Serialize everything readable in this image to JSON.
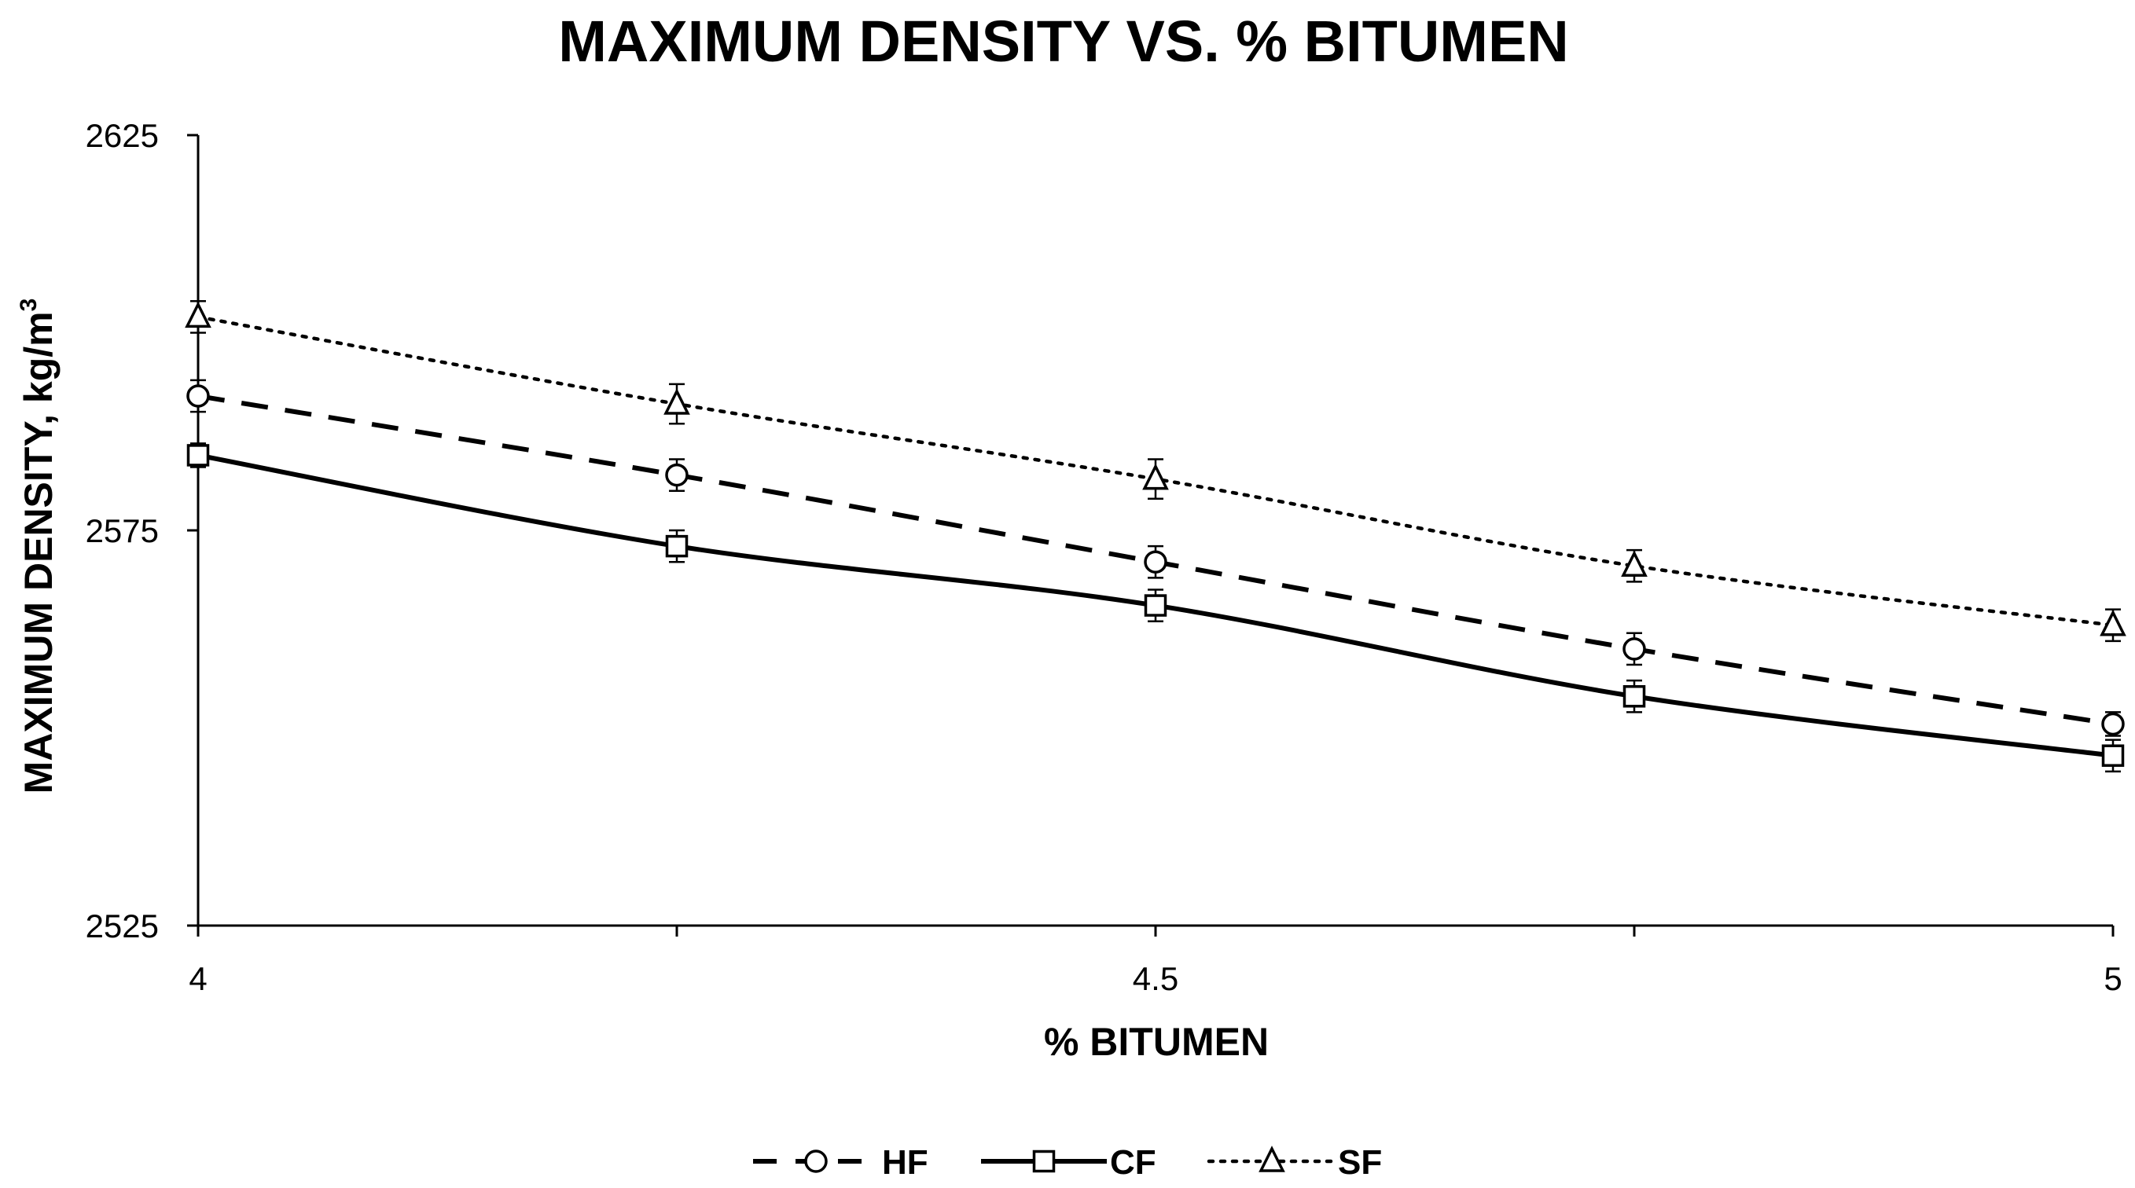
{
  "chart_data": {
    "type": "line",
    "title": "MAXIMUM DENSITY VS. % BITUMEN",
    "xlabel": "% BITUMEN",
    "ylabel": "MAXIMUM DENSITY, kg/m³",
    "ylabel_main": "MAXIMUM DENSITY, kg/m",
    "ylabel_sup": "3",
    "xlim": [
      4,
      5
    ],
    "ylim": [
      2525,
      2625
    ],
    "x_ticks": [
      4,
      4.5,
      5
    ],
    "x_tick_labels": [
      "4",
      "4.5",
      "5"
    ],
    "x_minor_ticks": [
      4.25,
      4.75
    ],
    "y_ticks": [
      2525,
      2575,
      2625
    ],
    "y_tick_labels": [
      "2525",
      "2575",
      "2625"
    ],
    "grid": false,
    "legend_position": "bottom-center",
    "x": [
      4,
      4.25,
      4.5,
      4.75,
      5
    ],
    "series": [
      {
        "name": "HF",
        "values": [
          2592,
          2582,
          2571,
          2560,
          2550.5
        ],
        "errors": [
          2,
          2,
          2,
          2,
          1.5
        ],
        "marker": "circle",
        "line_style": "dashed",
        "color": "#000000"
      },
      {
        "name": "CF",
        "values": [
          2584.5,
          2573,
          2565.5,
          2554,
          2546.5
        ],
        "errors": [
          1.5,
          2,
          2,
          2,
          2
        ],
        "marker": "square",
        "line_style": "solid",
        "color": "#000000"
      },
      {
        "name": "SF",
        "values": [
          2602,
          2591,
          2581.5,
          2570.5,
          2563
        ],
        "errors": [
          2,
          2.5,
          2.5,
          2,
          2
        ],
        "marker": "triangle",
        "line_style": "dotted",
        "color": "#000000"
      }
    ]
  }
}
